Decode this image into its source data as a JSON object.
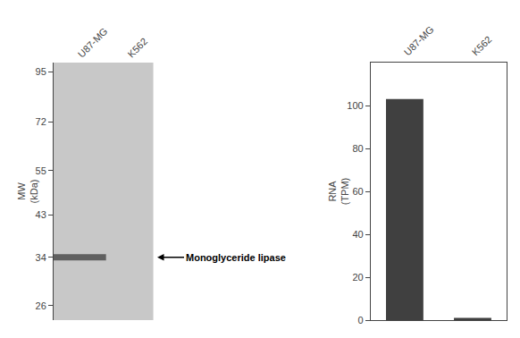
{
  "chart_data": [
    {
      "type": "blot",
      "categories": [
        "U87-MG",
        "K562"
      ],
      "values": [
        34,
        null
      ],
      "color": "#606060",
      "ylabel": "MW\n(kDa)",
      "log": "y",
      "ylim": [
        24,
        100
      ],
      "yticks": [
        95,
        72,
        55,
        43,
        34,
        26
      ],
      "grid": false,
      "annotations": [
        {
          "text": "Monoglyceride lipase",
          "y": 34
        }
      ]
    },
    {
      "type": "bar",
      "categories": [
        "U87-MG",
        "K562"
      ],
      "values": [
        103,
        1
      ],
      "color": "#404040",
      "ylabel": "RNA\n(TPM)",
      "ylim": [
        0,
        120
      ],
      "yticks": [
        0,
        20,
        40,
        60,
        80,
        100
      ],
      "grid": false
    }
  ]
}
